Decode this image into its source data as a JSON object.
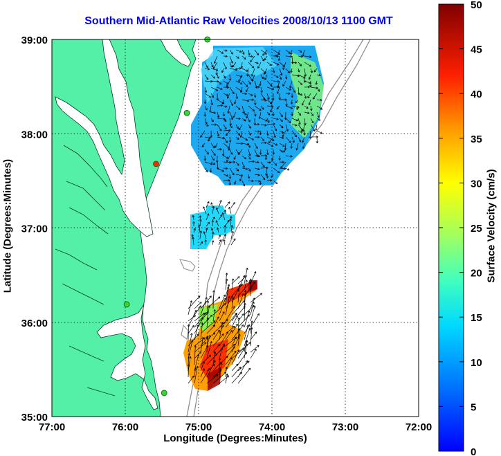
{
  "title": "Southern Mid-Atlantic Raw Velocities 2008/10/13 1100 GMT",
  "xlabel": "Longitude (Degrees:Minutes)",
  "ylabel": "Latitude (Degrees:Minutes)",
  "colorbar": {
    "label": "Surface Velocity (cm/s)",
    "min": 0,
    "max": 50,
    "ticks": [
      "0",
      "5",
      "10",
      "15",
      "20",
      "25",
      "30",
      "35",
      "40",
      "45",
      "50"
    ],
    "colormap": "jet"
  },
  "map": {
    "lon_range": [
      -77,
      -72
    ],
    "lat_range": [
      35,
      39
    ],
    "lon_ticks": [
      "77:00",
      "76:00",
      "75:00",
      "74:00",
      "73:00",
      "72:00"
    ],
    "lat_ticks": [
      "35:00",
      "36:00",
      "37:00",
      "38:00",
      "39:00"
    ],
    "grid": true,
    "land_color": "#55f0a8",
    "station_color": "#39d339",
    "station_active_color": "#ff2a00"
  },
  "chart_data": {
    "type": "heatmap",
    "title": "Southern Mid-Atlantic Raw Velocities 2008/10/13 1100 GMT",
    "xlabel": "Longitude (Degrees:Minutes)",
    "ylabel": "Latitude (Degrees:Minutes)",
    "xlim": [
      -77,
      -72
    ],
    "ylim": [
      35,
      39
    ],
    "units": "cm/s",
    "fields": [
      {
        "name": "north-field",
        "lon": [
          -75.1,
          -73.3
        ],
        "lat": [
          37.55,
          38.95
        ],
        "speed_cm_s": 8
      },
      {
        "name": "north-field-east-edge",
        "lon": [
          -73.8,
          -73.3
        ],
        "lat": [
          37.8,
          38.7
        ],
        "speed_cm_s": 18
      },
      {
        "name": "mid-field",
        "lon": [
          -75.1,
          -74.55
        ],
        "lat": [
          36.8,
          37.25
        ],
        "speed_cm_s": 10
      },
      {
        "name": "south-field",
        "lon": [
          -75.2,
          -74.3
        ],
        "lat": [
          35.25,
          36.45
        ],
        "speed_cm_s": 33
      },
      {
        "name": "south-field-east-edge",
        "lon": [
          -74.65,
          -74.25
        ],
        "lat": [
          36.2,
          36.45
        ],
        "speed_cm_s": 45
      }
    ],
    "stations": [
      {
        "lon": -74.88,
        "lat": 39.0,
        "status": "active"
      },
      {
        "lon": -75.16,
        "lat": 38.22,
        "status": "active"
      },
      {
        "lon": -75.58,
        "lat": 37.68,
        "status": "inactive"
      },
      {
        "lon": -75.98,
        "lat": 36.19,
        "status": "active"
      },
      {
        "lon": -75.47,
        "lat": 35.25,
        "status": "active"
      }
    ]
  }
}
